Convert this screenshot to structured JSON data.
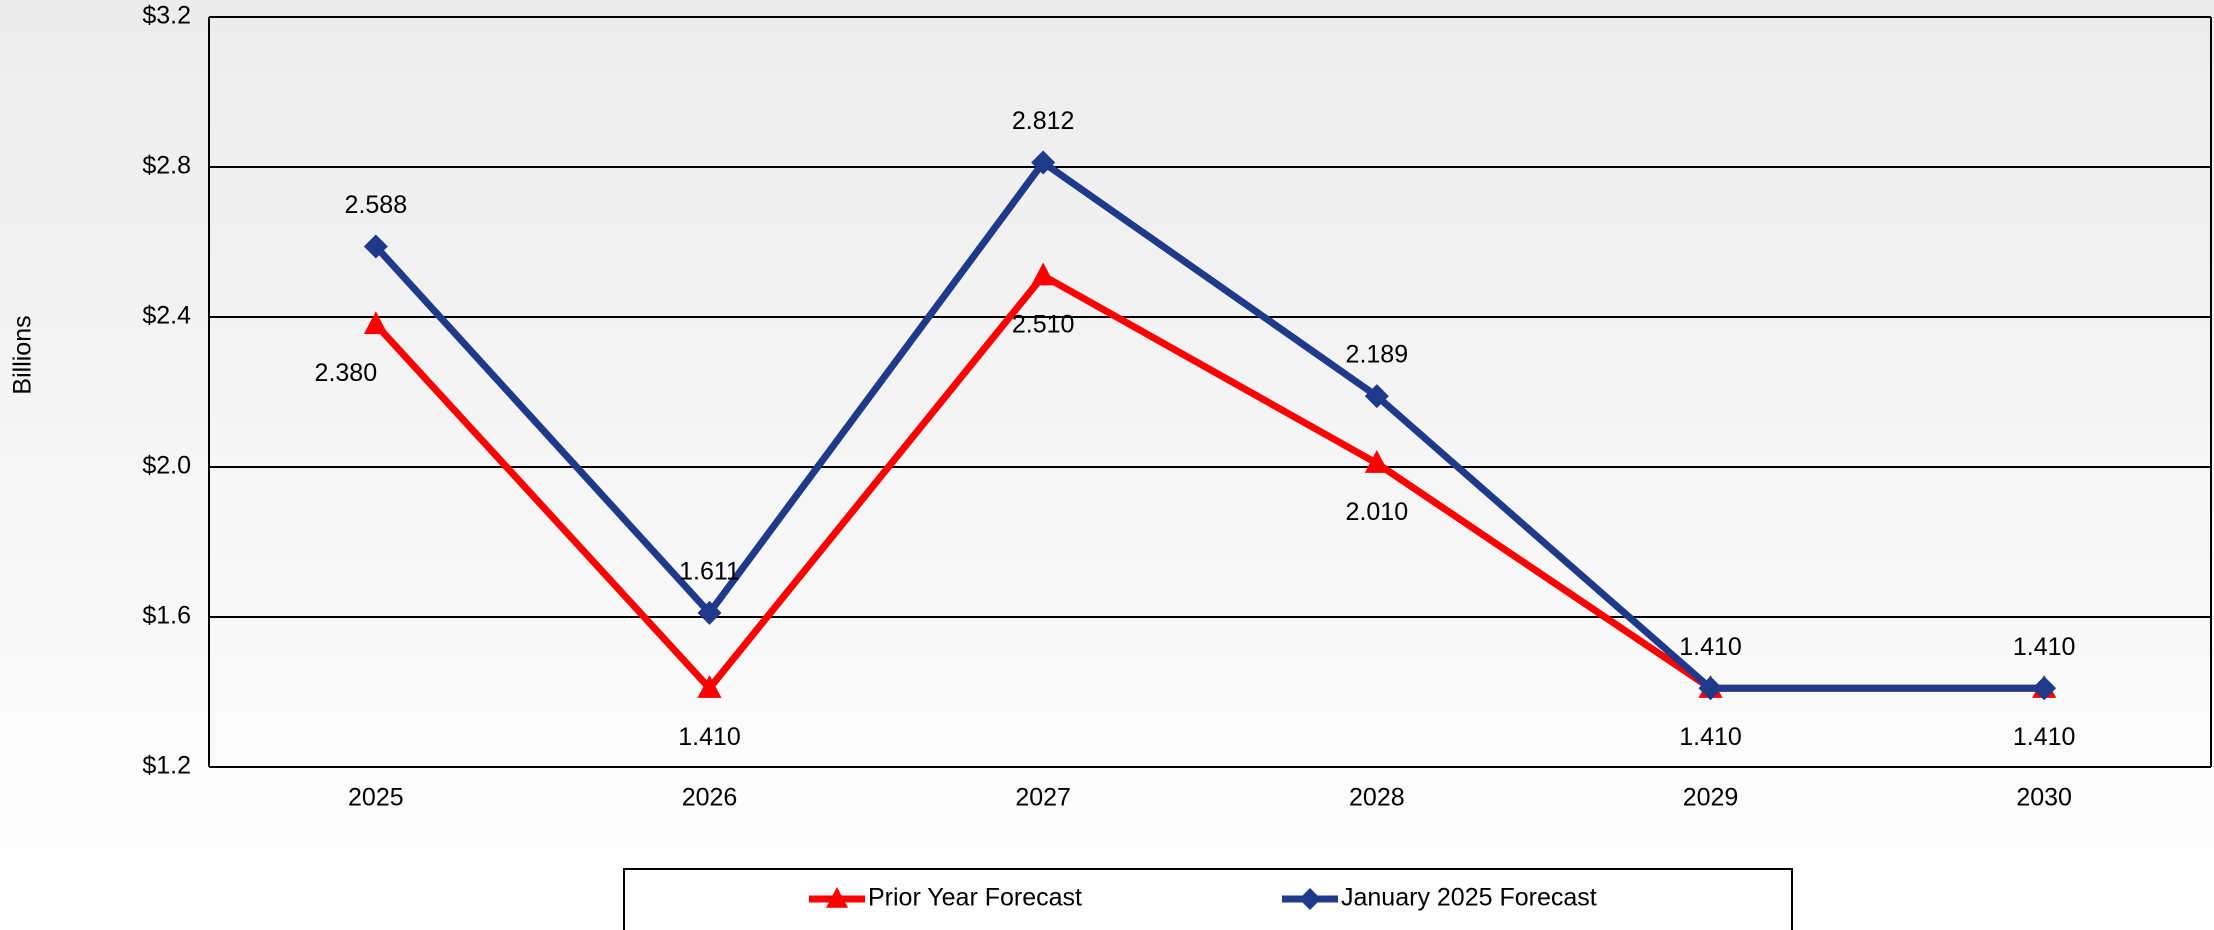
{
  "chart_data": {
    "type": "line",
    "y_label": "Billions",
    "categories": [
      "2025",
      "2026",
      "2027",
      "2028",
      "2029",
      "2030"
    ],
    "series": [
      {
        "name": "Prior Year Forecast",
        "color": "#ff0000",
        "marker": "triangle",
        "values": [
          2.38,
          1.41,
          2.51,
          2.01,
          1.41,
          1.41
        ],
        "value_labels": [
          "2.380",
          "1.410",
          "2.510",
          "2.010",
          "1.410",
          "1.410"
        ]
      },
      {
        "name": "January 2025 Forecast",
        "color": "#1f3a8a",
        "marker": "diamond",
        "values": [
          2.588,
          1.611,
          2.812,
          2.189,
          1.41,
          1.41
        ],
        "value_labels": [
          "2.588",
          "1.611",
          "2.812",
          "2.189",
          "1.410",
          "1.410"
        ]
      }
    ],
    "ylim": [
      1.2,
      3.2
    ],
    "yticks": [
      {
        "value": 1.2,
        "label": "$1.2"
      },
      {
        "value": 1.6,
        "label": "$1.6"
      },
      {
        "value": 2.0,
        "label": "$2.0"
      },
      {
        "value": 2.4,
        "label": "$2.4"
      },
      {
        "value": 2.8,
        "label": "$2.8"
      },
      {
        "value": 3.2,
        "label": "$3.2"
      }
    ],
    "grid": true,
    "legend": "bottom"
  }
}
